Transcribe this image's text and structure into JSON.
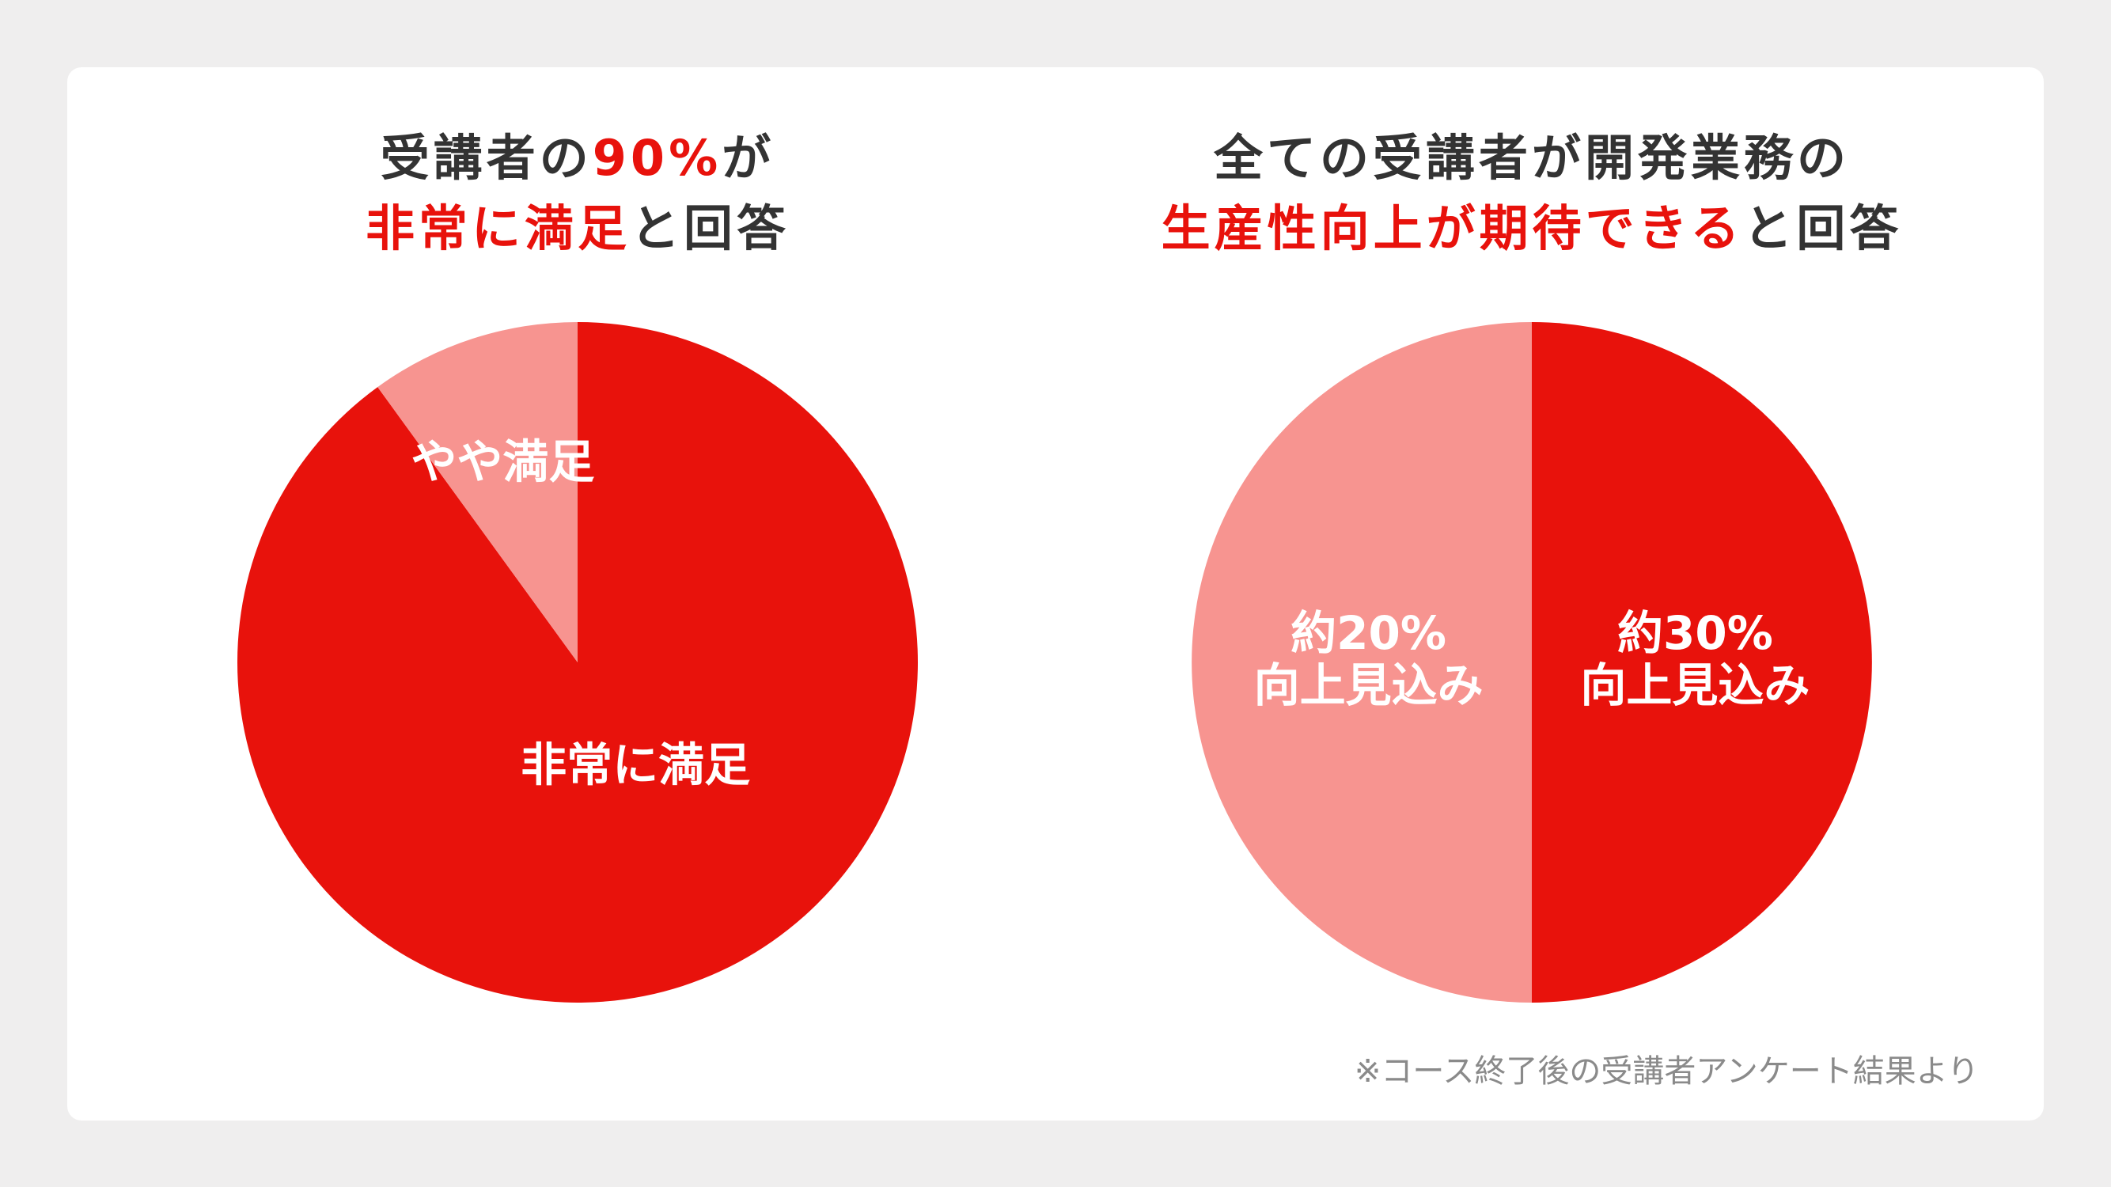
{
  "chart_data": [
    {
      "type": "pie",
      "title_lines": [
        [
          {
            "text": "受講者の",
            "color": "#333333"
          },
          {
            "text": "90%",
            "color": "#e8120c"
          },
          {
            "text": "が",
            "color": "#333333"
          }
        ],
        [
          {
            "text": "非常に満足",
            "color": "#e8120c"
          },
          {
            "text": "と回答",
            "color": "#333333"
          }
        ]
      ],
      "categories": [
        "非常に満足",
        "やや満足"
      ],
      "values": [
        90,
        10
      ],
      "colors": [
        "#e8120c",
        "#f79490"
      ]
    },
    {
      "type": "pie",
      "title_lines": [
        [
          {
            "text": "全ての受講者が開発業務の",
            "color": "#333333"
          }
        ],
        [
          {
            "text": "生産性向上が期待できる",
            "color": "#e8120c"
          },
          {
            "text": "と回答",
            "color": "#333333"
          }
        ]
      ],
      "categories": [
        [
          "約30%",
          "向上見込み"
        ],
        [
          "約20%",
          "向上見込み"
        ]
      ],
      "values": [
        50,
        50
      ],
      "colors": [
        "#e8120c",
        "#f79490"
      ]
    }
  ],
  "footnote": "※コース終了後の受講者アンケート結果より"
}
